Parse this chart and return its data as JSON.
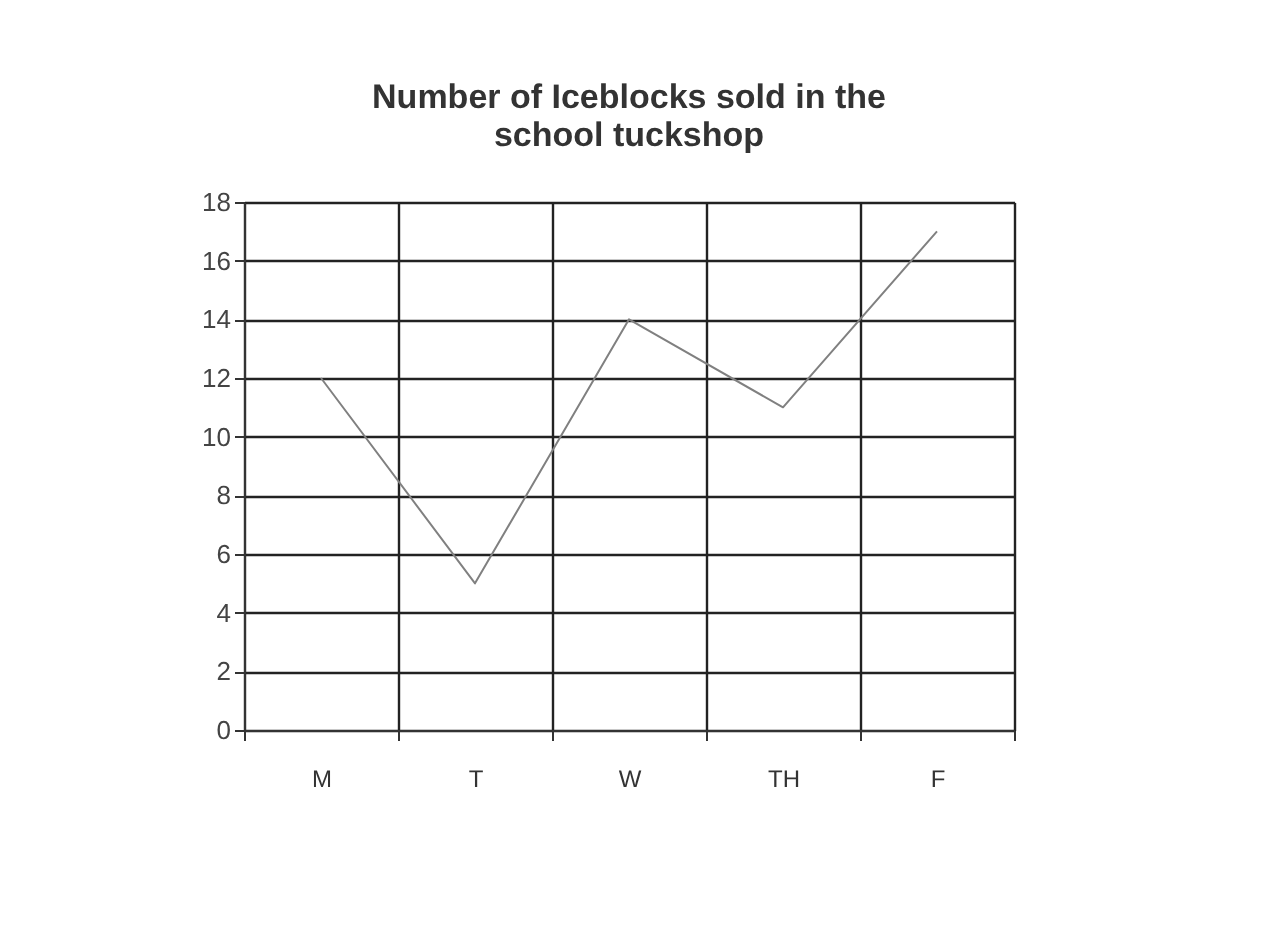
{
  "chart_data": {
    "type": "line",
    "title": [
      "Number of Iceblocks sold in the",
      "school tuckshop"
    ],
    "categories": [
      "M",
      "T",
      "W",
      "TH",
      "F"
    ],
    "series": [
      {
        "color": "#808080",
        "values": [
          12,
          5,
          14,
          11,
          17
        ]
      }
    ],
    "ylim": [
      0,
      18
    ],
    "yticks": [
      0,
      2,
      4,
      6,
      8,
      10,
      12,
      14,
      16,
      18
    ],
    "grid": true,
    "marker": "none",
    "line_style": "solid"
  }
}
